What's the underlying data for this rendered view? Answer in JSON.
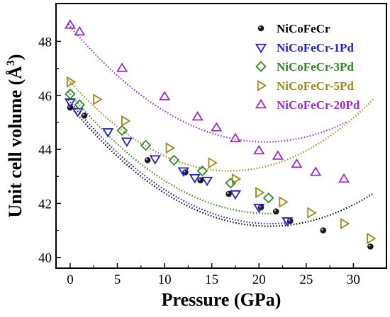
{
  "chart_data": {
    "type": "scatter",
    "xlabel": "Pressure (GPa)",
    "ylabel": "Unit cell volume (Å",
    "ylabel_sup": "3",
    "ylabel_close": ")",
    "xlim": [
      -1.5,
      33.5
    ],
    "ylim": [
      39.6,
      49.4
    ],
    "xticks": [
      0,
      5,
      10,
      15,
      20,
      25,
      30
    ],
    "yticks": [
      40,
      42,
      44,
      46,
      48
    ],
    "legend_position": "top-right",
    "fit_lines": "dotted",
    "series": [
      {
        "name": "NiCoFeCr",
        "marker": "circle",
        "color": "#000000",
        "x": [
          0,
          1.5,
          8.2,
          12.2,
          13.8,
          16.8,
          20.2,
          21.8,
          23.3,
          26.8,
          31.8
        ],
        "y": [
          45.55,
          45.25,
          43.6,
          43.15,
          42.85,
          42.35,
          41.85,
          41.7,
          41.35,
          41.0,
          40.4
        ],
        "fit": [
          45.6,
          0.4217,
          0.01
        ]
      },
      {
        "name": "NiCoFeCr-1Pd",
        "marker": "triangle-down",
        "color": "#1f1fd1",
        "x": [
          0,
          0.8,
          4.0,
          6.0,
          9.0,
          12.0,
          13.2,
          14.5,
          17.5,
          20.0,
          23.0
        ],
        "y": [
          45.75,
          45.4,
          44.65,
          44.3,
          43.65,
          43.2,
          42.95,
          42.85,
          42.35,
          41.85,
          41.35
        ],
        "fit": [
          45.75,
          0.4243,
          0.01
        ]
      },
      {
        "name": "NiCoFeCr-3Pd",
        "marker": "diamond",
        "color": "#2a8a1e",
        "x": [
          0,
          1.0,
          5.5,
          8.0,
          11.0,
          14.0,
          17.0,
          21.0
        ],
        "y": [
          46.05,
          45.65,
          44.7,
          44.15,
          43.6,
          43.2,
          42.75,
          42.2
        ],
        "fit": [
          46.05,
          0.4208,
          0.01
        ]
      },
      {
        "name": "NiCoFeCr-5Pd",
        "marker": "triangle-right",
        "color": "#9b8a15",
        "x": [
          0,
          2.8,
          5.8,
          10.5,
          15.0,
          17.5,
          20.0,
          22.5,
          25.5,
          29.0,
          31.8
        ],
        "y": [
          46.5,
          45.85,
          45.05,
          44.05,
          43.5,
          42.9,
          42.4,
          42.05,
          41.65,
          41.25,
          40.7
        ],
        "fit": [
          46.5,
          0.3894,
          0.0115
        ]
      },
      {
        "name": "NiCoFeCr-20Pd",
        "marker": "triangle-up",
        "color": "#9a29d6",
        "x": [
          0,
          1.0,
          5.5,
          10.0,
          13.5,
          15.5,
          17.5,
          20.0,
          22.0,
          24.0,
          26.0,
          29.0
        ],
        "y": [
          48.6,
          48.35,
          47.0,
          45.95,
          45.2,
          44.8,
          44.4,
          43.95,
          43.75,
          43.45,
          43.15,
          42.9
        ],
        "fit": [
          48.55,
          0.4135,
          0.01
        ]
      }
    ]
  }
}
